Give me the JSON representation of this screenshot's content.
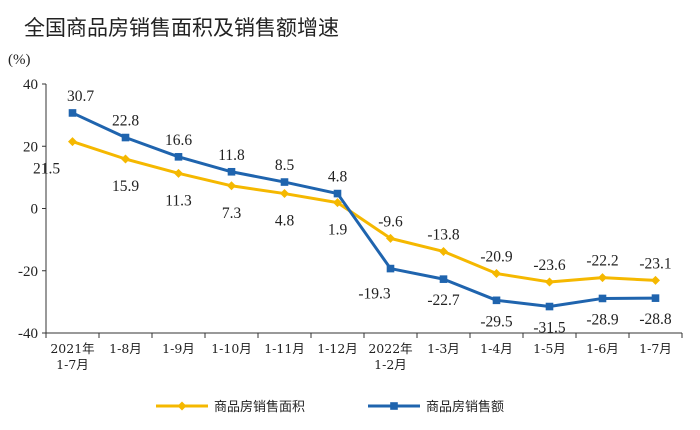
{
  "chart_data": {
    "type": "line",
    "title": "全国商品房销售面积及销售额增速",
    "unit_label": "(%)",
    "ylim": [
      -40,
      40
    ],
    "yticks": [
      "40",
      "20",
      "0",
      "-20",
      "-40"
    ],
    "ytick_values": [
      40,
      20,
      0,
      -20,
      -40
    ],
    "categories": [
      [
        "2021年",
        "1-7月"
      ],
      [
        "1-8月"
      ],
      [
        "1-9月"
      ],
      [
        "1-10月"
      ],
      [
        "1-11月"
      ],
      [
        "1-12月"
      ],
      [
        "2022年",
        "1-2月"
      ],
      [
        "1-3月"
      ],
      [
        "1-4月"
      ],
      [
        "1-5月"
      ],
      [
        "1-6月"
      ],
      [
        "1-7月"
      ]
    ],
    "grid": false,
    "legend_position": "bottom",
    "series": [
      {
        "name": "商品房销售面积",
        "color": "#F5B800",
        "marker": "diamond",
        "values": [
          21.5,
          15.9,
          11.3,
          7.3,
          4.8,
          1.9,
          -9.6,
          -13.8,
          -20.9,
          -23.6,
          -22.2,
          -23.1
        ],
        "labels": [
          "21.5",
          "15.9",
          "11.3",
          "7.3",
          "4.8",
          "1.9",
          "-9.6",
          "-13.8",
          "-20.9",
          "-23.6",
          "-22.2",
          "-23.1"
        ]
      },
      {
        "name": "商品房销售额",
        "color": "#1F64AE",
        "marker": "square",
        "values": [
          30.7,
          22.8,
          16.6,
          11.8,
          8.5,
          4.8,
          -19.3,
          -22.7,
          -29.5,
          -31.5,
          -28.9,
          -28.8
        ],
        "labels": [
          "30.7",
          "22.8",
          "16.6",
          "11.8",
          "8.5",
          "4.8",
          "-19.3",
          "-22.7",
          "-29.5",
          "-31.5",
          "-28.9",
          "-28.8"
        ]
      }
    ]
  }
}
